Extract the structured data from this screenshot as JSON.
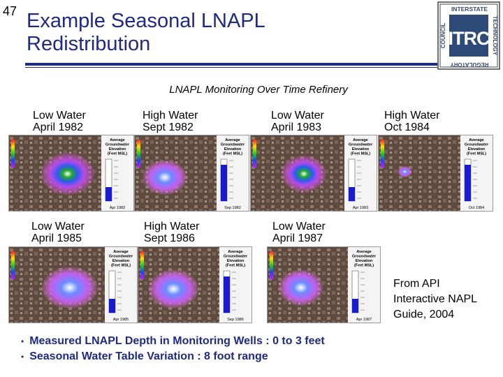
{
  "slide_number": "47",
  "title_line1": "Example Seasonal LNAPL",
  "title_line2": "Redistribution",
  "logo": {
    "top_text": "INTERSTATE",
    "right_text": "TECHNOLOGY",
    "bottom_text": "REGULATORY",
    "left_text": "COUNCIL",
    "center_text": "ITRC"
  },
  "subtitle": "LNAPL Monitoring Over Time Refinery",
  "panels": [
    {
      "line1": "Low Water",
      "line2": "April 1982",
      "map_date": "Apr 1982"
    },
    {
      "line1": "High Water",
      "line2": "Sept 1982",
      "map_date": "Sep 1982"
    },
    {
      "line1": "Low Water",
      "line2": "April 1983",
      "map_date": "Apr 1983"
    },
    {
      "line1": "High Water",
      "line2": "Oct 1984",
      "map_date": "Oct 1984"
    },
    {
      "line1": "Low Water",
      "line2": "April 1985",
      "map_date": "Apr 1985"
    },
    {
      "line1": "High Water",
      "line2": "Sept 1986",
      "map_date": "Sep 1986"
    },
    {
      "line1": "Low Water",
      "line2": "April 1987",
      "map_date": "Apr 1987"
    }
  ],
  "legend_title_l1": "Average",
  "legend_title_l2": "Groundwater",
  "legend_title_l3": "Elevation",
  "legend_title_l4": "(Feet MSL)",
  "source_l1": "From API",
  "source_l2": "Interactive NAPL",
  "source_l3": "Guide, 2004",
  "bullets": [
    "Measured LNAPL Depth in Monitoring Wells : 0 to 3 feet",
    "Seasonal Water Table Variation :  8 foot range"
  ],
  "colors": {
    "title": "#1f2a86",
    "bullet": "#1f2a86"
  }
}
